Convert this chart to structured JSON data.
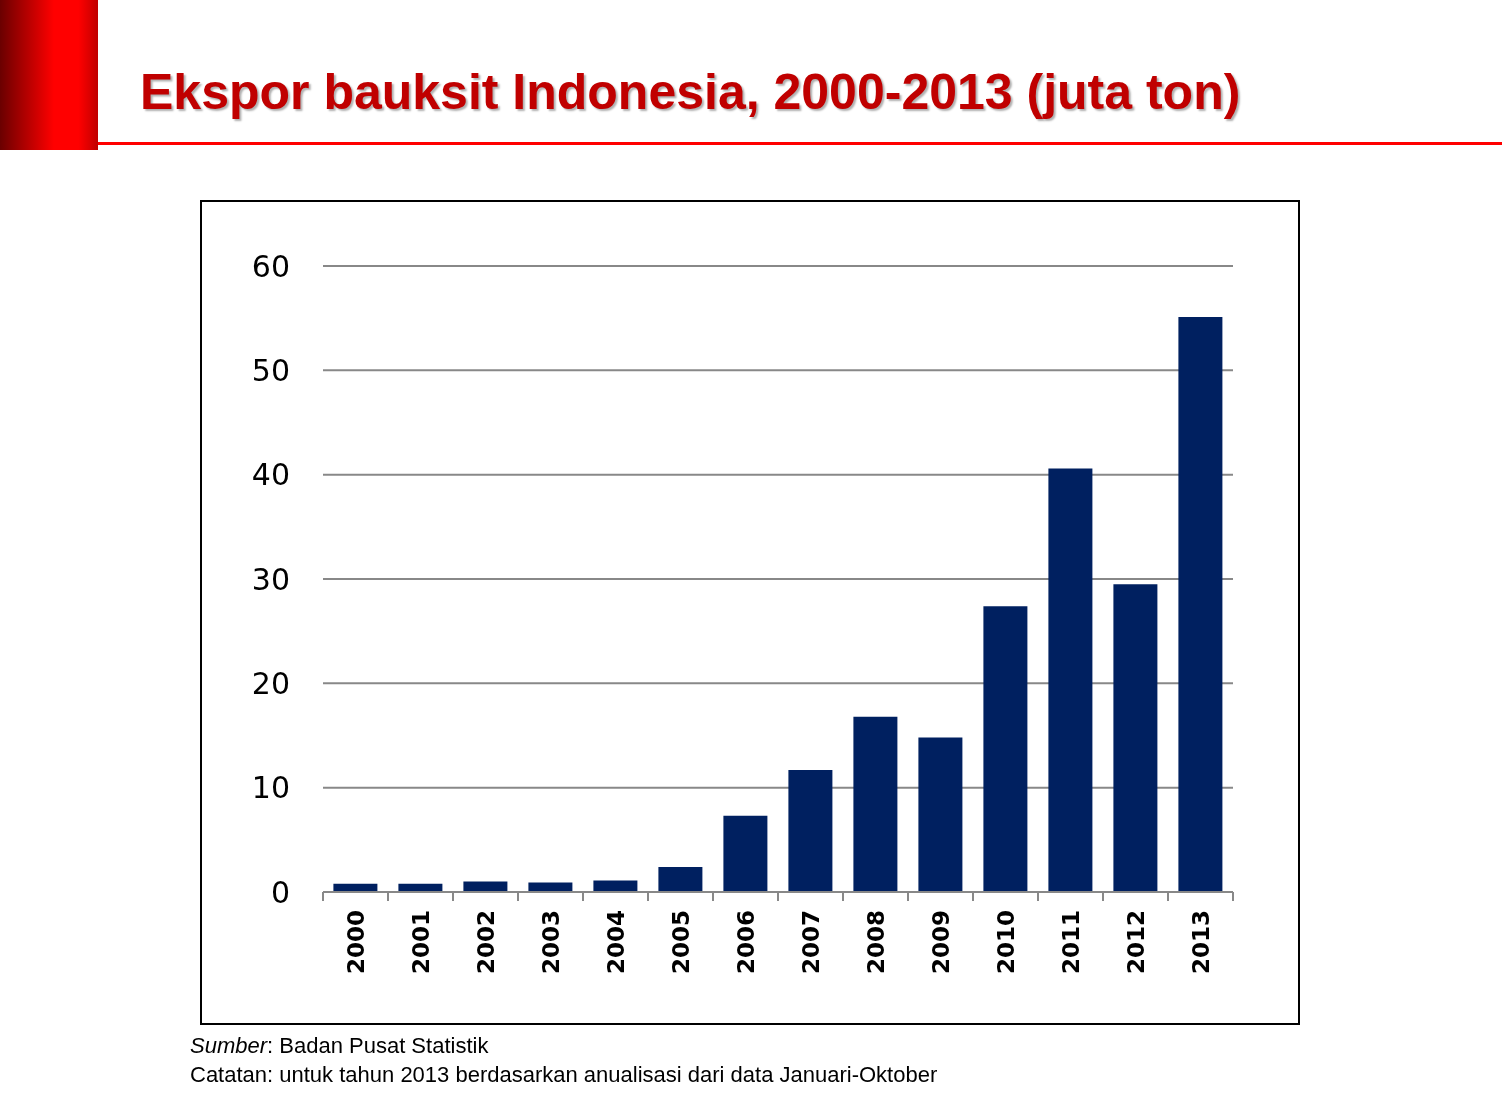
{
  "chart_data": {
    "type": "bar",
    "title": "Ekspor bauksit Indonesia, 2000-2013 (juta ton)",
    "categories": [
      "2000",
      "2001",
      "2002",
      "2003",
      "2004",
      "2005",
      "2006",
      "2007",
      "2008",
      "2009",
      "2010",
      "2011",
      "2012",
      "2013"
    ],
    "values": [
      0.8,
      0.8,
      1.0,
      0.9,
      1.1,
      2.4,
      7.3,
      11.7,
      16.8,
      14.8,
      27.4,
      40.6,
      29.5,
      55.1
    ],
    "color": "#002060",
    "ylim": [
      0,
      60
    ],
    "yticks": [
      0,
      10,
      20,
      30,
      40,
      50,
      60
    ],
    "grid": "y",
    "annotations": [
      "Sumber: Badan Pusat Statistik",
      "Catatan: untuk tahun 2013 berdasarkan anualisasi dari data Januari-Oktober"
    ]
  }
}
